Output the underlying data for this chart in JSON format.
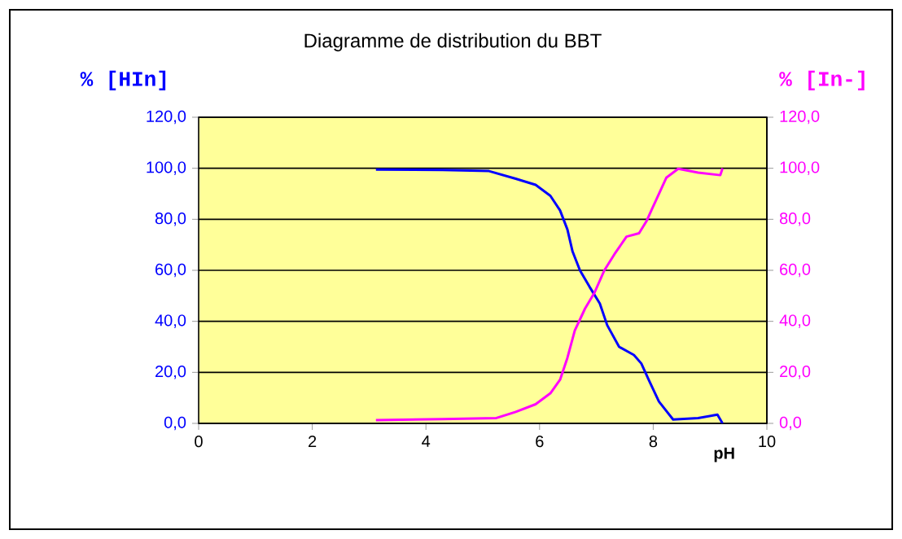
{
  "chart_data": {
    "type": "line",
    "title": "Diagramme de distribution du BBT",
    "xlabel": "pH",
    "ylabel": "% [HIn]",
    "y2label": "% [In-]",
    "xlim": [
      0,
      10
    ],
    "xticks": [
      0,
      2,
      4,
      6,
      8,
      10
    ],
    "ylim": [
      0,
      120
    ],
    "yticks": [
      {
        "value": 0,
        "label": "0,0"
      },
      {
        "value": 20,
        "label": "20,0"
      },
      {
        "value": 40,
        "label": "40,0"
      },
      {
        "value": 60,
        "label": "60,0"
      },
      {
        "value": 80,
        "label": "80,0"
      },
      {
        "value": 100,
        "label": "100,0"
      },
      {
        "value": 120,
        "label": "120,0"
      }
    ],
    "y2lim": [
      0,
      120
    ],
    "y2ticks": [
      {
        "value": 0,
        "label": "0,0"
      },
      {
        "value": 20,
        "label": "20,0"
      },
      {
        "value": 40,
        "label": "40,0"
      },
      {
        "value": 60,
        "label": "60,0"
      },
      {
        "value": 80,
        "label": "80,0"
      },
      {
        "value": 100,
        "label": "100,0"
      },
      {
        "value": 120,
        "label": "120,0"
      }
    ],
    "grid": "y",
    "series": [
      {
        "color": "#0000ff",
        "x": [
          3.12,
          4.29,
          5.11,
          5.58,
          5.93,
          6.19,
          6.36,
          6.49,
          6.58,
          6.71,
          6.88,
          7.06,
          7.19,
          7.4,
          7.66,
          7.79,
          7.92,
          8.1,
          8.35,
          8.79,
          9.13,
          9.22
        ],
        "values": [
          99.5,
          99.3,
          98.9,
          95.9,
          93.5,
          89.2,
          83.5,
          76,
          67.4,
          60,
          53.5,
          47,
          38.5,
          30,
          26.8,
          23.5,
          17.1,
          8.6,
          1.5,
          2.1,
          3.4,
          0
        ]
      },
      {
        "color": "#ff00ff",
        "axis": "y2",
        "x": [
          3.12,
          4.29,
          5.24,
          5.58,
          5.93,
          6.19,
          6.36,
          6.49,
          6.62,
          6.8,
          6.97,
          7.14,
          7.32,
          7.53,
          7.75,
          7.88,
          8.01,
          8.23,
          8.44,
          8.79,
          9.18,
          9.22
        ],
        "values": [
          1.3,
          1.7,
          2.1,
          4.5,
          7.5,
          11.8,
          17.1,
          25.7,
          36.4,
          45,
          51.4,
          60,
          66.4,
          73.2,
          74.5,
          79.2,
          85.6,
          96.3,
          99.8,
          98.3,
          97.3,
          100
        ]
      }
    ]
  }
}
